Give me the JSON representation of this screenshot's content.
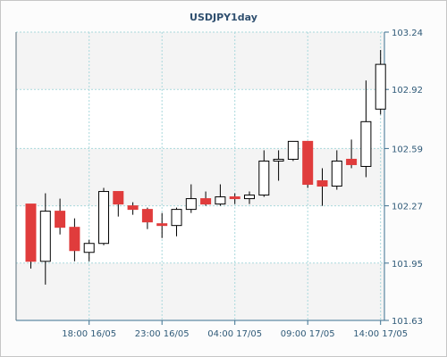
{
  "chart_data": {
    "type": "candlestick",
    "title": "USDJPY1day",
    "xlabel": "",
    "ylabel": "",
    "ylim": [
      101.63,
      103.24
    ],
    "yticks": [
      "103.24",
      "102.92",
      "102.59",
      "102.27",
      "101.95",
      "101.63"
    ],
    "xticks": [
      {
        "label": "18:00 16/05",
        "index": 4
      },
      {
        "label": "23:00 16/05",
        "index": 9
      },
      {
        "label": "04:00 17/05",
        "index": 14
      },
      {
        "label": "09:00 17/05",
        "index": 19
      },
      {
        "label": "14:00 17/05",
        "index": 24
      }
    ],
    "grid": true,
    "up_color": "#ffffff",
    "down_color": "#e03c3c",
    "candles": [
      {
        "o": 102.28,
        "h": 102.28,
        "l": 101.92,
        "c": 101.96
      },
      {
        "o": 101.96,
        "h": 102.34,
        "l": 101.83,
        "c": 102.24
      },
      {
        "o": 102.24,
        "h": 102.31,
        "l": 102.11,
        "c": 102.15
      },
      {
        "o": 102.15,
        "h": 102.2,
        "l": 101.96,
        "c": 102.02
      },
      {
        "o": 102.01,
        "h": 102.08,
        "l": 101.96,
        "c": 102.06
      },
      {
        "o": 102.06,
        "h": 102.37,
        "l": 102.05,
        "c": 102.35
      },
      {
        "o": 102.35,
        "h": 102.35,
        "l": 102.21,
        "c": 102.28
      },
      {
        "o": 102.27,
        "h": 102.29,
        "l": 102.22,
        "c": 102.25
      },
      {
        "o": 102.25,
        "h": 102.26,
        "l": 102.14,
        "c": 102.18
      },
      {
        "o": 102.17,
        "h": 102.23,
        "l": 102.09,
        "c": 102.16
      },
      {
        "o": 102.16,
        "h": 102.26,
        "l": 102.1,
        "c": 102.25
      },
      {
        "o": 102.25,
        "h": 102.39,
        "l": 102.23,
        "c": 102.31
      },
      {
        "o": 102.31,
        "h": 102.35,
        "l": 102.27,
        "c": 102.28
      },
      {
        "o": 102.28,
        "h": 102.39,
        "l": 102.27,
        "c": 102.32
      },
      {
        "o": 102.32,
        "h": 102.34,
        "l": 102.28,
        "c": 102.31
      },
      {
        "o": 102.31,
        "h": 102.35,
        "l": 102.28,
        "c": 102.33
      },
      {
        "o": 102.33,
        "h": 102.58,
        "l": 102.32,
        "c": 102.52
      },
      {
        "o": 102.52,
        "h": 102.58,
        "l": 102.41,
        "c": 102.53
      },
      {
        "o": 102.53,
        "h": 102.63,
        "l": 102.52,
        "c": 102.63
      },
      {
        "o": 102.63,
        "h": 102.63,
        "l": 102.37,
        "c": 102.39
      },
      {
        "o": 102.41,
        "h": 102.48,
        "l": 102.27,
        "c": 102.38
      },
      {
        "o": 102.38,
        "h": 102.58,
        "l": 102.36,
        "c": 102.52
      },
      {
        "o": 102.53,
        "h": 102.64,
        "l": 102.48,
        "c": 102.5
      },
      {
        "o": 102.49,
        "h": 102.97,
        "l": 102.43,
        "c": 102.74
      },
      {
        "o": 102.81,
        "h": 103.14,
        "l": 102.78,
        "c": 103.06
      }
    ]
  }
}
